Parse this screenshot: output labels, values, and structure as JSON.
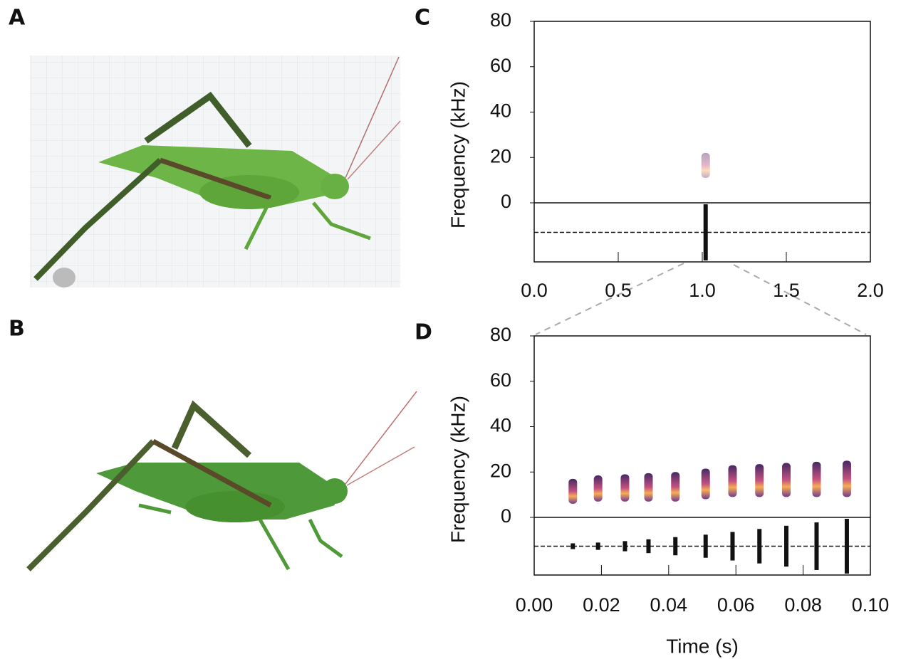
{
  "figure": {
    "panels": [
      "A",
      "B"
    ]
  },
  "chart_data": [
    {
      "type": "spectrogram",
      "panel_label": "C",
      "y_label": "Frequency (kHz)",
      "x": [
        1.02
      ],
      "values": [
        17
      ],
      "xlim": [
        0,
        2
      ],
      "ylim": [
        0,
        80
      ],
      "xticks": [
        {
          "value": 0,
          "label": "0.0"
        },
        0.5,
        {
          "value": 1,
          "label": "1.0"
        },
        1.5,
        {
          "value": 2,
          "label": "2.0"
        }
      ],
      "yticks": [
        0,
        20,
        40,
        60,
        80
      ]
    },
    {
      "type": "spectrogram",
      "panel_label": "D",
      "y_label": "Frequency (kHz)",
      "x_label": "Time (s)",
      "x": [
        0.0115,
        0.019,
        0.027,
        0.034,
        0.042,
        0.051,
        0.059,
        0.067,
        0.075,
        0.084,
        0.093
      ],
      "values": [
        12,
        13,
        13,
        13,
        13,
        14,
        15,
        15,
        15,
        15,
        15
      ],
      "xlim": [
        0,
        0.1
      ],
      "ylim": [
        0,
        80
      ],
      "xticks": [
        {
          "value": 0,
          "label": "0.00"
        },
        {
          "value": 0.02,
          "label": "0.02"
        },
        {
          "value": 0.04,
          "label": "0.04"
        },
        {
          "value": 0.06,
          "label": "0.06"
        },
        {
          "value": 0.08,
          "label": "0.08"
        },
        {
          "value": 0.1,
          "label": "0.10"
        }
      ],
      "yticks": [
        0,
        20,
        40,
        60,
        80
      ]
    }
  ]
}
